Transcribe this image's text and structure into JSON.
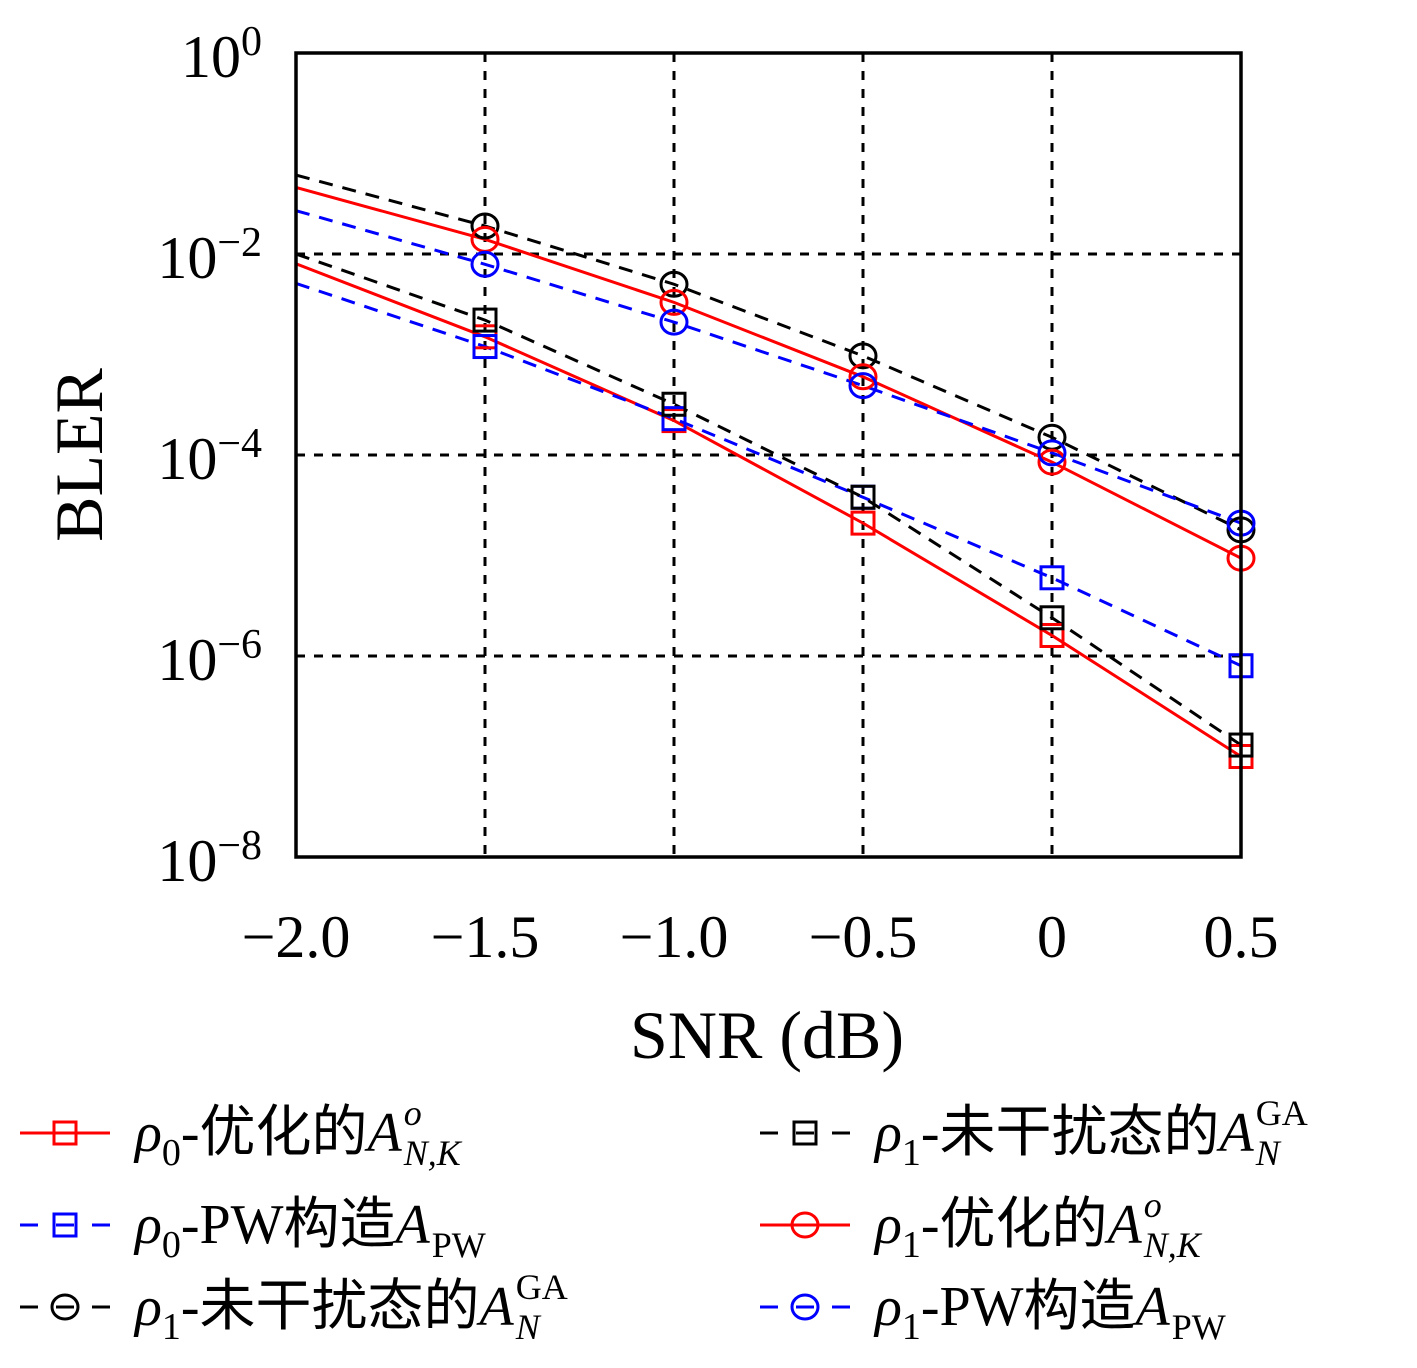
{
  "chart_data": {
    "type": "line",
    "xlabel": "SNR (dB)",
    "ylabel": "BLER",
    "xlim": [
      -2.0,
      0.5
    ],
    "ylim": [
      1e-08,
      1
    ],
    "yscale": "log",
    "grid": true,
    "legend_placement": "below",
    "xticks": [
      {
        "value": -2.0,
        "label": "−2.0"
      },
      {
        "value": -1.5,
        "label": "−1.5"
      },
      {
        "value": -1.0,
        "label": "−1.0"
      },
      {
        "value": -0.5,
        "label": "−0.5"
      },
      {
        "value": 0,
        "label": "0"
      },
      {
        "value": 0.5,
        "label": "0.5"
      }
    ],
    "yticks": [
      {
        "value": 1,
        "base": "10",
        "exp": "0"
      },
      {
        "value": 0.01,
        "base": "10",
        "exp": "−2"
      },
      {
        "value": 0.0001,
        "base": "10",
        "exp": "−4"
      },
      {
        "value": 1e-06,
        "base": "10",
        "exp": "−6"
      },
      {
        "value": 1e-08,
        "base": "10",
        "exp": "−8"
      }
    ],
    "x": [
      -2.0,
      -1.5,
      -1.0,
      -0.5,
      0,
      0.5
    ],
    "series": [
      {
        "name": {
          "rho": "ρ",
          "rho_sub": "0",
          "text": "-优化的",
          "sym": "A",
          "sup": "o",
          "sub": "N,K"
        },
        "color": "#ff0000",
        "linestyle": "solid",
        "marker": "square",
        "y": [
          0.008,
          0.0015,
          0.00022,
          2.1e-05,
          1.6e-06,
          1e-07
        ]
      },
      {
        "name": {
          "rho": "ρ",
          "rho_sub": "0",
          "text": "-PW构造",
          "sym": "A",
          "sup": "",
          "sub": "PW"
        },
        "color": "#0000ff",
        "linestyle": "dashed",
        "marker": "square",
        "y": [
          0.0051,
          0.0012,
          0.00023,
          3.8e-05,
          6e-06,
          8e-07
        ]
      },
      {
        "name": {
          "rho": "ρ",
          "rho_sub": "1",
          "text": "-未干扰态的",
          "sym": "A",
          "sup": "GA",
          "sub": "N"
        },
        "color": "#000000",
        "linestyle": "dashed",
        "marker": "circle",
        "y": [
          0.061,
          0.019,
          0.005,
          0.00097,
          0.00015,
          1.8e-05
        ]
      },
      {
        "name": {
          "rho": "ρ",
          "rho_sub": "1",
          "text": "-未干扰态的",
          "sym": "A",
          "sup": "GA",
          "sub": "N"
        },
        "color": "#000000",
        "linestyle": "dashed",
        "marker": "square",
        "y": [
          0.01,
          0.0022,
          0.00032,
          3.8e-05,
          2.4e-06,
          1.3e-07
        ]
      },
      {
        "name": {
          "rho": "ρ",
          "rho_sub": "1",
          "text": "-优化的",
          "sym": "A",
          "sup": "o",
          "sub": "N,K"
        },
        "color": "#ff0000",
        "linestyle": "solid",
        "marker": "circle",
        "y": [
          0.046,
          0.014,
          0.0033,
          0.0006,
          8.5e-05,
          9.4e-06
        ]
      },
      {
        "name": {
          "rho": "ρ",
          "rho_sub": "1",
          "text": "-PW构造",
          "sym": "A",
          "sup": "",
          "sub": "PW"
        },
        "color": "#0000ff",
        "linestyle": "dashed",
        "marker": "circle",
        "y": [
          0.027,
          0.0079,
          0.0021,
          0.00049,
          0.000105,
          2.1e-05
        ]
      }
    ]
  }
}
